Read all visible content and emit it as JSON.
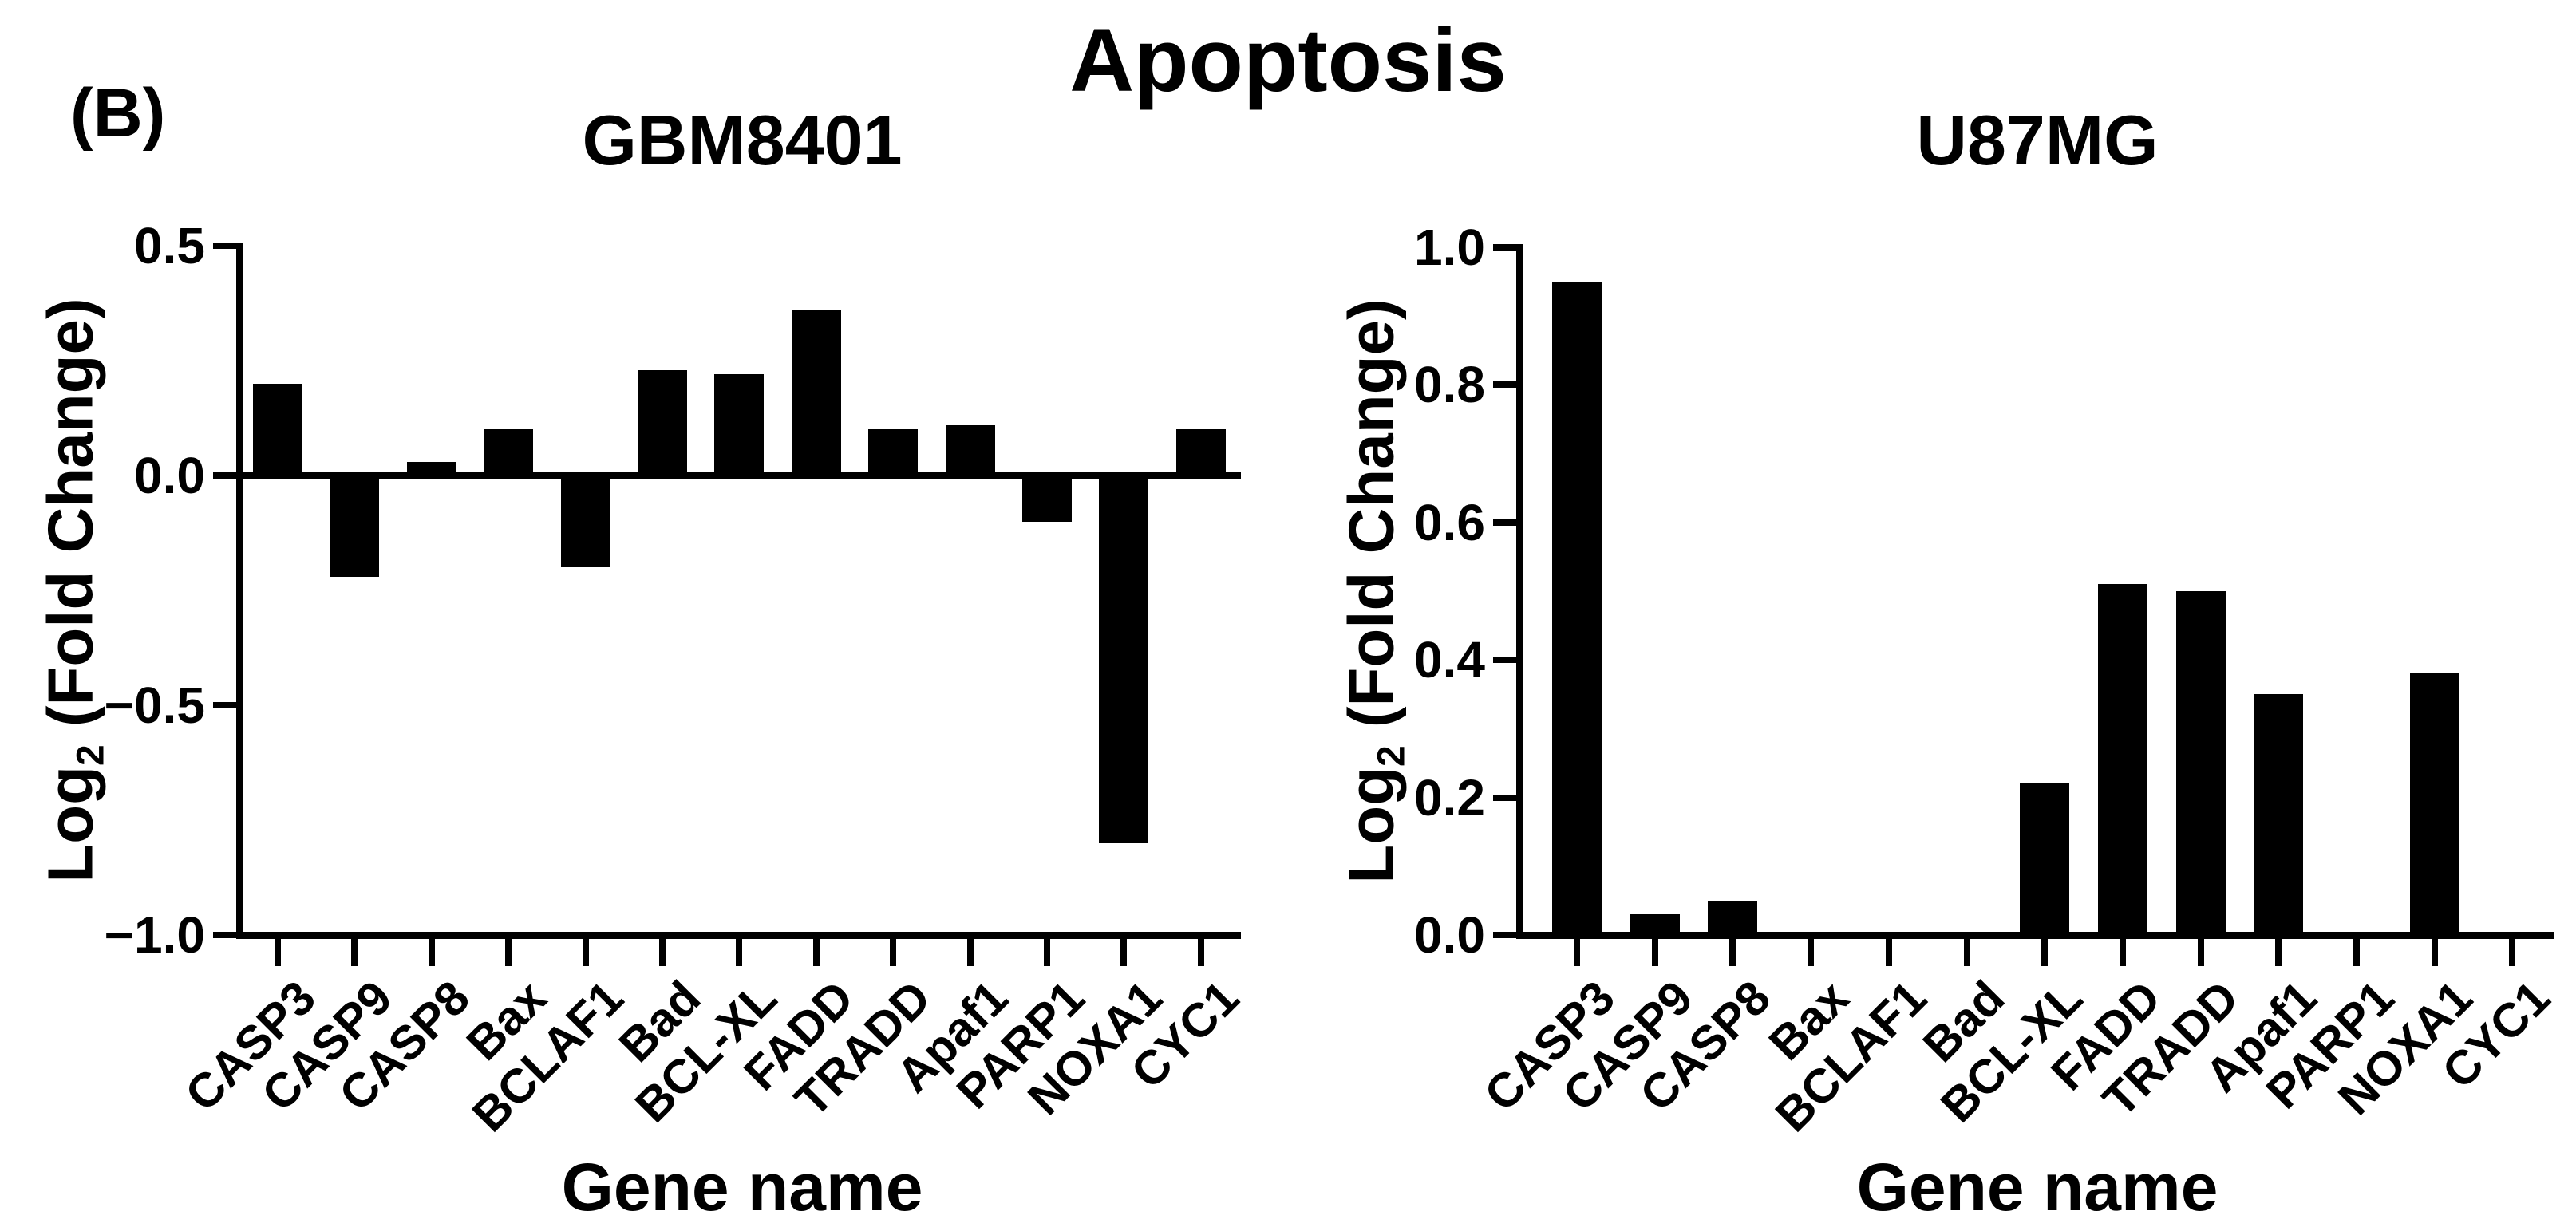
{
  "figure": {
    "panel_label": "(B)",
    "title": "Apoptosis",
    "background": "#ffffff",
    "ink_color": "#000000",
    "bar_color": "#000000"
  },
  "axis": {
    "ylabel": {
      "pre": "Log",
      "sub": "2",
      "post": " (Fold Change)"
    },
    "xlabel": "Gene name"
  },
  "genes": [
    "CASP3",
    "CASP9",
    "CASP8",
    "Bax",
    "BCLAF1",
    "Bad",
    "BCL-XL",
    "FADD",
    "TRADD",
    "Apaf1",
    "PARP1",
    "NOXA1",
    "CYC1"
  ],
  "chart_data": [
    {
      "type": "bar",
      "title": "GBM8401",
      "categories": [
        "CASP3",
        "CASP9",
        "CASP8",
        "Bax",
        "BCLAF1",
        "Bad",
        "BCL-XL",
        "FADD",
        "TRADD",
        "Apaf1",
        "PARP1",
        "NOXA1",
        "CYC1"
      ],
      "values": [
        0.2,
        -0.22,
        0.03,
        0.1,
        -0.2,
        0.23,
        0.22,
        0.36,
        0.1,
        0.11,
        -0.1,
        -0.8,
        0.1
      ],
      "xlabel": "Gene name",
      "ylabel": "Log2 (Fold Change)",
      "ylim": [
        -1.0,
        0.5
      ],
      "yticks": [
        0.5,
        0.0,
        -0.5,
        -1.0
      ],
      "grid": false,
      "legend": "none",
      "bar_color": "#000000"
    },
    {
      "type": "bar",
      "title": "U87MG",
      "categories": [
        "CASP3",
        "CASP9",
        "CASP8",
        "Bax",
        "BCLAF1",
        "Bad",
        "BCL-XL",
        "FADD",
        "TRADD",
        "Apaf1",
        "PARP1",
        "NOXA1",
        "CYC1"
      ],
      "values": [
        0.95,
        0.03,
        0.05,
        0.0,
        0.0,
        0.0,
        0.22,
        0.51,
        0.5,
        0.35,
        0.0,
        0.38,
        0.0
      ],
      "xlabel": "Gene name",
      "ylabel": "Log2 (Fold Change)",
      "ylim": [
        0.0,
        1.0
      ],
      "yticks": [
        1.0,
        0.8,
        0.6,
        0.4,
        0.2,
        0.0
      ],
      "grid": false,
      "legend": "none",
      "bar_color": "#000000"
    }
  ]
}
